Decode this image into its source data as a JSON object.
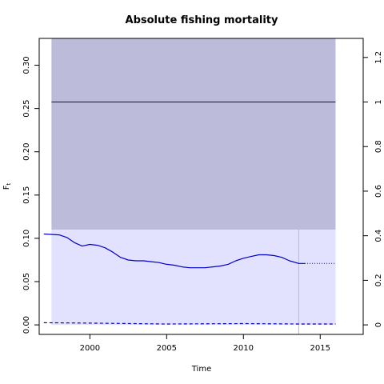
{
  "chart_data": {
    "type": "line",
    "title": "Absolute fishing mortality",
    "xlabel": "Time",
    "ylabel": "F",
    "ylabel_subscript": "t",
    "xlim": [
      1996.7,
      2017.8
    ],
    "ylim": [
      -0.011,
      0.331
    ],
    "x_ticks": [
      2000,
      2005,
      2010,
      2015
    ],
    "y_ticks": [
      0.0,
      0.05,
      0.1,
      0.15,
      0.2,
      0.25,
      0.3
    ],
    "y_tick_labels": [
      "0.00",
      "0.05",
      "0.10",
      "0.15",
      "0.20",
      "0.25",
      "0.30"
    ],
    "right_axis": {
      "ratio_ref": 0.2575,
      "ticks": [
        0,
        0.2,
        0.4,
        0.6,
        0.8,
        1,
        1.2
      ],
      "tick_labels": [
        "0",
        "0.2",
        "0.4",
        "0.6",
        "0.8",
        "1",
        "1.2"
      ]
    },
    "regions": {
      "x_range": [
        1997.5,
        2016.0
      ],
      "upper_band": [
        0.11,
        0.331
      ],
      "lower_band": [
        0.0,
        0.11
      ]
    },
    "fmsy_line": 0.2575,
    "vline_x": 2013.6,
    "colors": {
      "upper_band": "#bcbcda",
      "lower_band": "#e2e2fe",
      "line": "#0000cc",
      "vline": "#b8b8d8"
    },
    "series_main": {
      "x": [
        1997.0,
        1998.0,
        1998.5,
        1999.0,
        1999.5,
        2000.0,
        2000.5,
        2001.0,
        2001.5,
        2002.0,
        2002.5,
        2003.0,
        2003.5,
        2004.0,
        2004.5,
        2005.0,
        2005.5,
        2006.0,
        2006.5,
        2007.0,
        2007.5,
        2008.0,
        2008.5,
        2009.0,
        2009.5,
        2010.0,
        2010.5,
        2011.0,
        2011.5,
        2012.0,
        2012.5,
        2013.0,
        2013.6,
        2014.0
      ],
      "y": [
        0.105,
        0.104,
        0.101,
        0.095,
        0.091,
        0.093,
        0.092,
        0.089,
        0.084,
        0.078,
        0.075,
        0.074,
        0.074,
        0.073,
        0.072,
        0.07,
        0.069,
        0.067,
        0.066,
        0.066,
        0.066,
        0.067,
        0.068,
        0.07,
        0.074,
        0.077,
        0.079,
        0.081,
        0.081,
        0.08,
        0.078,
        0.074,
        0.071,
        0.071
      ]
    },
    "series_projection": {
      "x": [
        2014.0,
        2016.0
      ],
      "y": [
        0.071,
        0.071
      ]
    },
    "series_lower_dashed": {
      "x": [
        1997.0,
        2000.0,
        2005.0,
        2010.0,
        2013.6,
        2016.0
      ],
      "y": [
        0.0025,
        0.002,
        0.001,
        0.0015,
        0.001,
        0.001
      ]
    }
  }
}
